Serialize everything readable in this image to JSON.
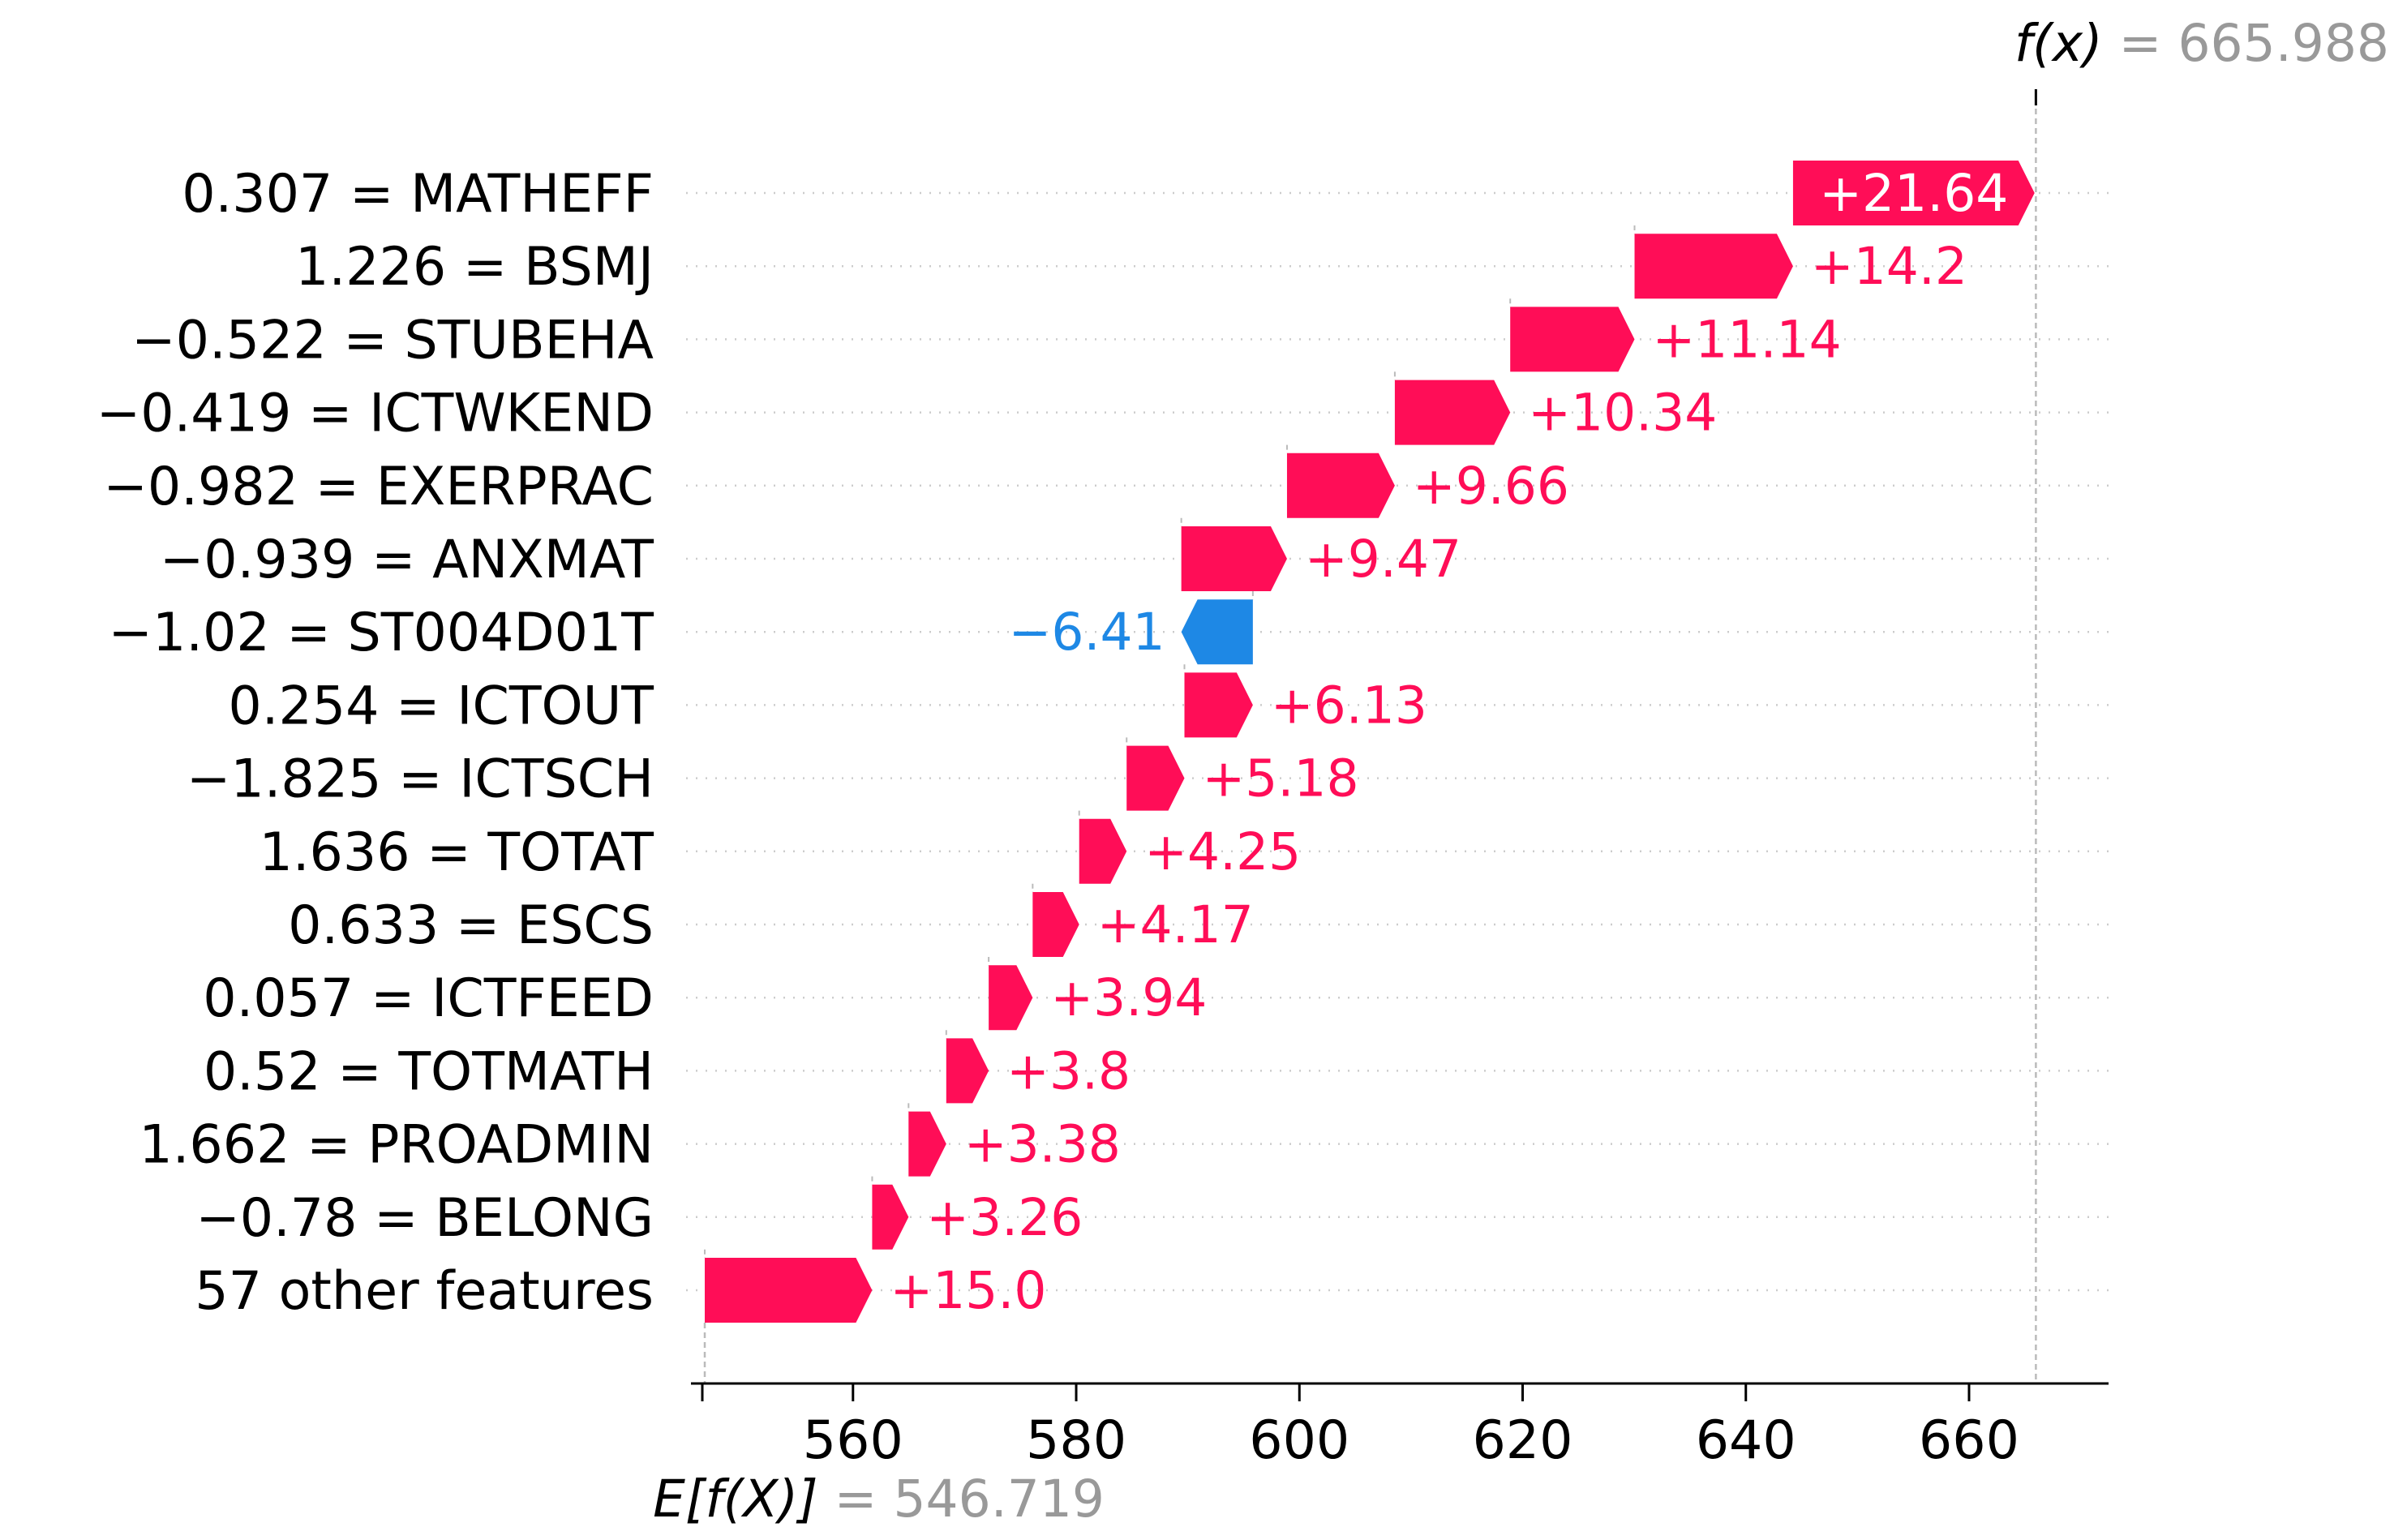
{
  "chart_data": {
    "type": "waterfall",
    "title": "",
    "base_value": 546.719,
    "base_value_text": "546.719",
    "base_label": "E[f(X)]",
    "final_value": 665.988,
    "final_value_text": "665.988",
    "final_label": "f(x)",
    "xlim": [
      546.5,
      672.5
    ],
    "xticks": [
      560,
      580,
      600,
      620,
      640,
      660
    ],
    "colors": {
      "positive": "#ff0d57",
      "negative": "#1e88e5",
      "grid": "#cccccc",
      "axis": "#000000"
    },
    "features": [
      {
        "label": "0.307 = MATHEFF",
        "value": 21.64,
        "text": "+21.64"
      },
      {
        "label": "1.226 = BSMJ",
        "value": 14.2,
        "text": "+14.2"
      },
      {
        "label": "−0.522 = STUBEHA",
        "value": 11.14,
        "text": "+11.14"
      },
      {
        "label": "−0.419 = ICTWKEND",
        "value": 10.34,
        "text": "+10.34"
      },
      {
        "label": "−0.982 = EXERPRAC",
        "value": 9.66,
        "text": "+9.66"
      },
      {
        "label": "−0.939 = ANXMAT",
        "value": 9.47,
        "text": "+9.47"
      },
      {
        "label": "−1.02 = ST004D01T",
        "value": -6.41,
        "text": "−6.41"
      },
      {
        "label": "0.254 = ICTOUT",
        "value": 6.13,
        "text": "+6.13"
      },
      {
        "label": "−1.825 = ICTSCH",
        "value": 5.18,
        "text": "+5.18"
      },
      {
        "label": "1.636 = TOTAT",
        "value": 4.25,
        "text": "+4.25"
      },
      {
        "label": "0.633 = ESCS",
        "value": 4.17,
        "text": "+4.17"
      },
      {
        "label": "0.057 = ICTFEED",
        "value": 3.94,
        "text": "+3.94"
      },
      {
        "label": "0.52 = TOTMATH",
        "value": 3.8,
        "text": "+3.8"
      },
      {
        "label": "1.662 = PROADMIN",
        "value": 3.38,
        "text": "+3.38"
      },
      {
        "label": "−0.78 = BELONG",
        "value": 3.26,
        "text": "+3.26"
      },
      {
        "label": "57 other features",
        "value": 15.0,
        "text": "+15.0"
      }
    ]
  }
}
